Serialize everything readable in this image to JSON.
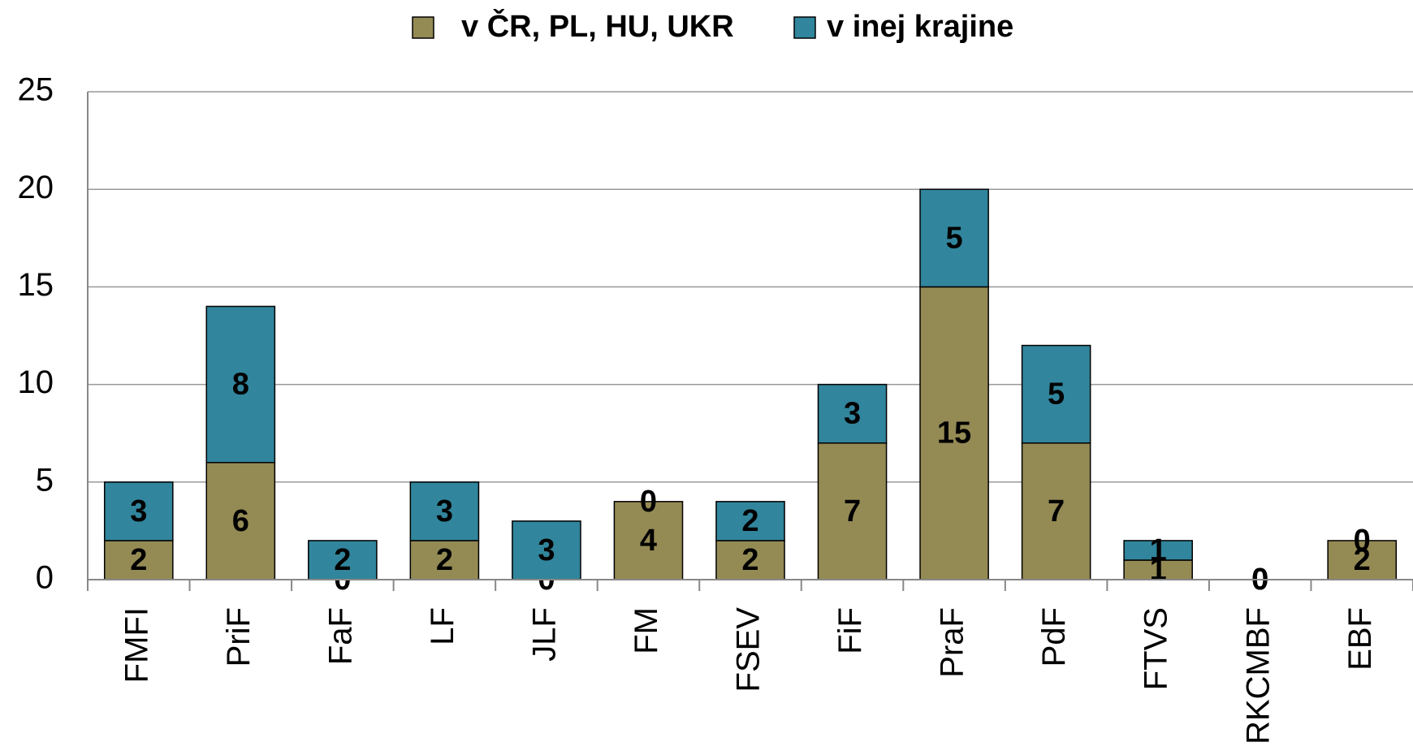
{
  "chart_data": {
    "type": "stacked_bar",
    "categories": [
      "FMFI",
      "PriF",
      "FaF",
      "LF",
      "JLF",
      "FM",
      "FSEV",
      "FiF",
      "PraF",
      "PdF",
      "FTVS",
      "RKCMBF",
      "EBF"
    ],
    "series": [
      {
        "name": "v ČR, PL, HU, UKR",
        "color": "#948a54",
        "values": [
          2,
          6,
          0,
          2,
          0,
          4,
          2,
          7,
          15,
          7,
          1,
          0,
          2
        ]
      },
      {
        "name": "v inej krajine",
        "color": "#31859c",
        "values": [
          3,
          8,
          2,
          3,
          3,
          0,
          2,
          3,
          5,
          5,
          1,
          0,
          0
        ]
      }
    ],
    "ylim": [
      0,
      25
    ],
    "yticks": [
      0,
      5,
      10,
      15,
      20,
      25
    ],
    "grid": true,
    "legend": "top"
  }
}
